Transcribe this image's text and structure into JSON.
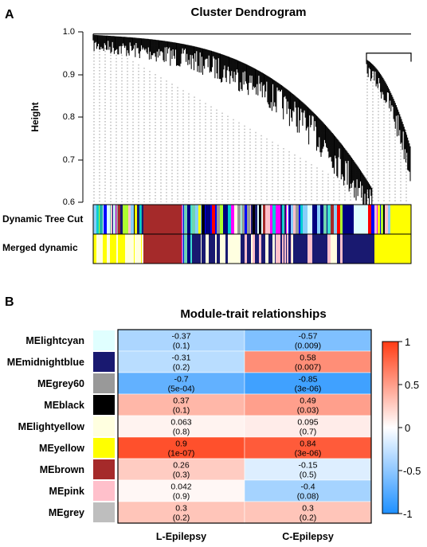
{
  "panel_a": {
    "label": "A",
    "title": "Cluster Dendrogram",
    "ylabel": "Height",
    "y_ticks": [
      "1.0",
      "0.9",
      "0.8",
      "0.7",
      "0.6"
    ],
    "row_labels": [
      "Dynamic Tree Cut",
      "Merged dynamic"
    ],
    "palette": [
      "#6fd6b0",
      "#20b2aa",
      "#00ced1",
      "#87cefa",
      "#e0ffff",
      "#000080",
      "#191970",
      "#ffff00",
      "#ffffe0",
      "#a52a2a",
      "#ffc0cb",
      "#ff00ff",
      "#ff0000",
      "#000000",
      "#999999",
      "#0000ff",
      "#40e0d0",
      "#adff2f"
    ]
  },
  "panel_b": {
    "label": "B",
    "title": "Module-trait relationships",
    "colorbar_ticks": [
      "1",
      "0.5",
      "0",
      "-0.5",
      "-1"
    ]
  },
  "chart_data": {
    "type": "heatmap",
    "title": "Module-trait relationships",
    "columns": [
      "L-Epilepsy",
      "C-Epilepsy"
    ],
    "rows": [
      {
        "name": "MElightcyan",
        "module_color": "#e0ffff",
        "values": [
          -0.37,
          -0.57
        ],
        "labels": [
          "-0.37",
          "-0.57"
        ],
        "pvalues": [
          "(0.1)",
          "(0.009)"
        ]
      },
      {
        "name": "MEmidnightblue",
        "module_color": "#191970",
        "values": [
          -0.31,
          0.58
        ],
        "labels": [
          "-0.31",
          "0.58"
        ],
        "pvalues": [
          "(0.2)",
          "(0.007)"
        ]
      },
      {
        "name": "MEgrey60",
        "module_color": "#999999",
        "values": [
          -0.7,
          -0.85
        ],
        "labels": [
          "-0.7",
          "-0.85"
        ],
        "pvalues": [
          "(5e-04)",
          "(3e-06)"
        ]
      },
      {
        "name": "MEblack",
        "module_color": "#000000",
        "values": [
          0.37,
          0.49
        ],
        "labels": [
          "0.37",
          "0.49"
        ],
        "pvalues": [
          "(0.1)",
          "(0.03)"
        ]
      },
      {
        "name": "MElightyellow",
        "module_color": "#ffffe0",
        "values": [
          0.063,
          0.095
        ],
        "labels": [
          "0.063",
          "0.095"
        ],
        "pvalues": [
          "(0.8)",
          "(0.7)"
        ]
      },
      {
        "name": "MEyellow",
        "module_color": "#ffff00",
        "values": [
          0.9,
          0.84
        ],
        "labels": [
          "0.9",
          "0.84"
        ],
        "pvalues": [
          "(1e-07)",
          "(3e-06)"
        ]
      },
      {
        "name": "MEbrown",
        "module_color": "#a52a2a",
        "values": [
          0.26,
          -0.15
        ],
        "labels": [
          "0.26",
          "-0.15"
        ],
        "pvalues": [
          "(0.3)",
          "(0.5)"
        ]
      },
      {
        "name": "MEpink",
        "module_color": "#ffc0cb",
        "values": [
          0.042,
          -0.4
        ],
        "labels": [
          "0.042",
          "-0.4"
        ],
        "pvalues": [
          "(0.9)",
          "(0.08)"
        ]
      },
      {
        "name": "MEgrey",
        "module_color": "#bebebe",
        "values": [
          0.3,
          0.3
        ],
        "labels": [
          "0.3",
          "0.3"
        ],
        "pvalues": [
          "(0.2)",
          "(0.2)"
        ]
      }
    ],
    "color_range": [
      -1,
      1
    ],
    "color_scale": {
      "low": "#1e90ff",
      "mid": "#ffffff",
      "high": "#ff3c14"
    }
  }
}
